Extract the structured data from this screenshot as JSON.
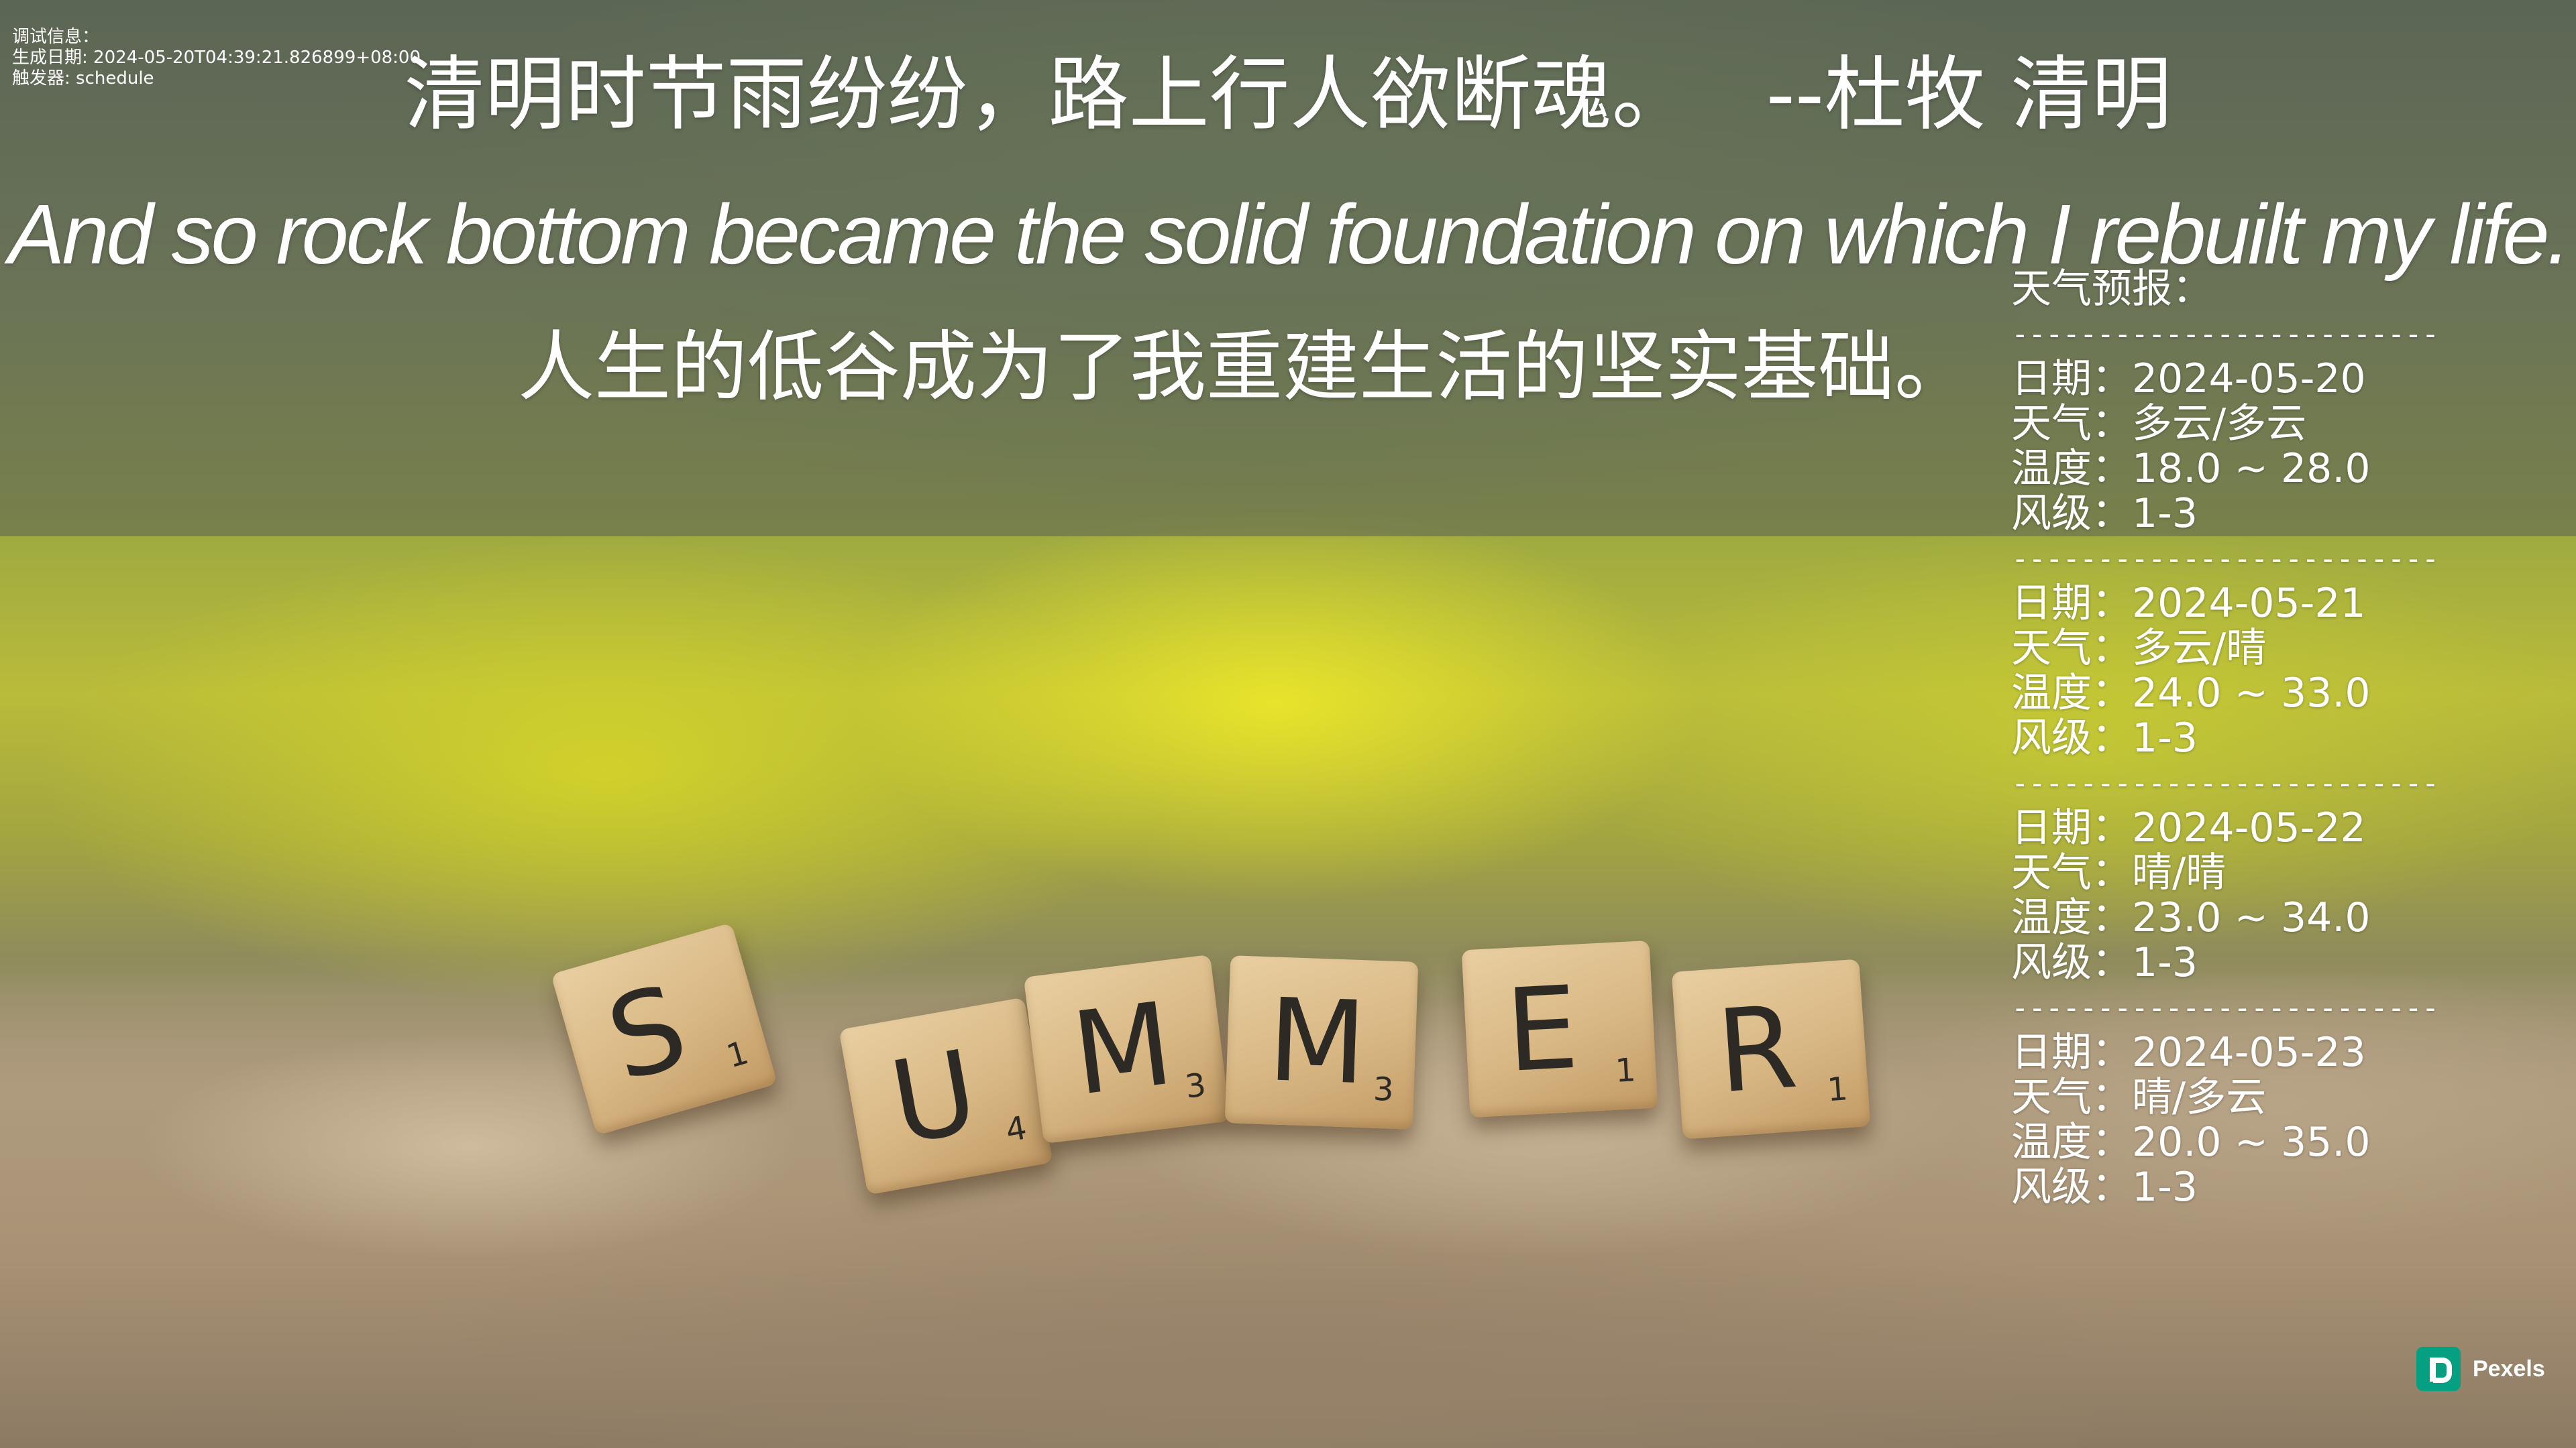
{
  "debug": {
    "line1": "调试信息：",
    "line2": "生成日期: 2024-05-20T04:39:21.826899+08:00",
    "line3": "触发器: schedule"
  },
  "quote": {
    "text": "清明时节雨纷纷，路上行人欲断魂。",
    "author": "--杜牧 清明",
    "english": "And so rock bottom became the solid foundation on which I rebuilt my life.",
    "translation": "人生的低谷成为了我重建生活的坚实基础。"
  },
  "weather": {
    "title": "天气预报：",
    "separator": "----------------------------",
    "days": [
      {
        "date": "日期：2024-05-20",
        "weather": "天气：多云/多云",
        "temp": "温度：18.0 ~ 28.0",
        "wind": "风级：1-3"
      },
      {
        "date": "日期：2024-05-21",
        "weather": "天气：多云/晴",
        "temp": "温度：24.0 ~ 33.0",
        "wind": "风级：1-3"
      },
      {
        "date": "日期：2024-05-22",
        "weather": "天气：晴/晴",
        "temp": "温度：23.0 ~ 34.0",
        "wind": "风级：1-3"
      },
      {
        "date": "日期：2024-05-23",
        "weather": "天气：晴/多云",
        "temp": "温度：20.0 ~ 35.0",
        "wind": "风级：1-3"
      }
    ]
  },
  "tiles": [
    {
      "letter": "S",
      "score": "1"
    },
    {
      "letter": "U",
      "score": "4"
    },
    {
      "letter": "M",
      "score": "3"
    },
    {
      "letter": "M",
      "score": "3"
    },
    {
      "letter": "E",
      "score": "1"
    },
    {
      "letter": "R",
      "score": "1"
    }
  ],
  "watermark": {
    "name": "Pexels",
    "color": "#05a081"
  }
}
